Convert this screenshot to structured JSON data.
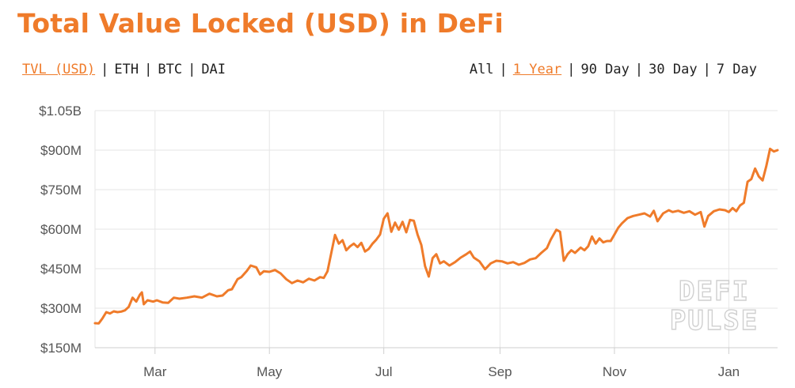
{
  "title": "Total Value Locked (USD) in DeFi",
  "metric_tabs": [
    {
      "label": "TVL (USD)",
      "active": true
    },
    {
      "label": "ETH",
      "active": false
    },
    {
      "label": "BTC",
      "active": false
    },
    {
      "label": "DAI",
      "active": false
    }
  ],
  "range_tabs": [
    {
      "label": "All",
      "active": false
    },
    {
      "label": "1 Year",
      "active": true
    },
    {
      "label": "90 Day",
      "active": false
    },
    {
      "label": "30 Day",
      "active": false
    },
    {
      "label": "7 Day",
      "active": false
    }
  ],
  "watermark": [
    "DEFI",
    "PULSE"
  ],
  "colors": {
    "accent": "#ef7b2a",
    "grid": "#e6e6e6",
    "text": "#555555"
  },
  "chart_data": {
    "type": "line",
    "title": "Total Value Locked (USD) in DeFi",
    "xlabel": "",
    "ylabel": "",
    "grid": true,
    "ylim": [
      150,
      1050
    ],
    "y_ticks": [
      150,
      300,
      450,
      600,
      750,
      900,
      1050
    ],
    "y_tick_labels": [
      "$150M",
      "$300M",
      "$450M",
      "$600M",
      "$750M",
      "$900M",
      "$1.05B"
    ],
    "x_range": [
      "2019-01-28",
      "2020-01-27"
    ],
    "x_ticks": [
      "2019-03-01",
      "2019-05-01",
      "2019-07-01",
      "2019-09-01",
      "2019-11-01",
      "2020-01-01"
    ],
    "x_tick_labels": [
      "Mar",
      "May",
      "Jul",
      "Sep",
      "Nov",
      "Jan"
    ],
    "series": [
      {
        "color": "#ef7b2a",
        "points": [
          [
            "2019-01-28",
            243
          ],
          [
            "2019-01-30",
            242
          ],
          [
            "2019-02-01",
            262
          ],
          [
            "2019-02-03",
            285
          ],
          [
            "2019-02-05",
            280
          ],
          [
            "2019-02-07",
            288
          ],
          [
            "2019-02-09",
            285
          ],
          [
            "2019-02-11",
            287
          ],
          [
            "2019-02-13",
            292
          ],
          [
            "2019-02-15",
            305
          ],
          [
            "2019-02-17",
            340
          ],
          [
            "2019-02-19",
            325
          ],
          [
            "2019-02-21",
            352
          ],
          [
            "2019-02-22",
            360
          ],
          [
            "2019-02-23",
            315
          ],
          [
            "2019-02-25",
            330
          ],
          [
            "2019-02-28",
            325
          ],
          [
            "2019-03-02",
            330
          ],
          [
            "2019-03-05",
            322
          ],
          [
            "2019-03-08",
            320
          ],
          [
            "2019-03-11",
            340
          ],
          [
            "2019-03-14",
            336
          ],
          [
            "2019-03-18",
            340
          ],
          [
            "2019-03-22",
            345
          ],
          [
            "2019-03-26",
            340
          ],
          [
            "2019-03-30",
            355
          ],
          [
            "2019-04-03",
            345
          ],
          [
            "2019-04-06",
            348
          ],
          [
            "2019-04-09",
            368
          ],
          [
            "2019-04-11",
            372
          ],
          [
            "2019-04-14",
            410
          ],
          [
            "2019-04-16",
            418
          ],
          [
            "2019-04-19",
            442
          ],
          [
            "2019-04-21",
            462
          ],
          [
            "2019-04-24",
            455
          ],
          [
            "2019-04-26",
            428
          ],
          [
            "2019-04-28",
            440
          ],
          [
            "2019-05-01",
            438
          ],
          [
            "2019-05-04",
            445
          ],
          [
            "2019-05-07",
            432
          ],
          [
            "2019-05-10",
            410
          ],
          [
            "2019-05-13",
            395
          ],
          [
            "2019-05-16",
            405
          ],
          [
            "2019-05-19",
            398
          ],
          [
            "2019-05-22",
            412
          ],
          [
            "2019-05-25",
            405
          ],
          [
            "2019-05-28",
            418
          ],
          [
            "2019-05-30",
            415
          ],
          [
            "2019-06-01",
            440
          ],
          [
            "2019-06-03",
            510
          ],
          [
            "2019-06-05",
            578
          ],
          [
            "2019-06-07",
            545
          ],
          [
            "2019-06-09",
            558
          ],
          [
            "2019-06-11",
            520
          ],
          [
            "2019-06-13",
            535
          ],
          [
            "2019-06-15",
            545
          ],
          [
            "2019-06-17",
            532
          ],
          [
            "2019-06-19",
            548
          ],
          [
            "2019-06-21",
            515
          ],
          [
            "2019-06-23",
            525
          ],
          [
            "2019-06-25",
            545
          ],
          [
            "2019-06-27",
            560
          ],
          [
            "2019-06-29",
            580
          ],
          [
            "2019-07-01",
            640
          ],
          [
            "2019-07-03",
            660
          ],
          [
            "2019-07-05",
            590
          ],
          [
            "2019-07-07",
            625
          ],
          [
            "2019-07-09",
            598
          ],
          [
            "2019-07-11",
            628
          ],
          [
            "2019-07-13",
            588
          ],
          [
            "2019-07-15",
            635
          ],
          [
            "2019-07-17",
            632
          ],
          [
            "2019-07-19",
            580
          ],
          [
            "2019-07-21",
            540
          ],
          [
            "2019-07-23",
            460
          ],
          [
            "2019-07-25",
            420
          ],
          [
            "2019-07-27",
            490
          ],
          [
            "2019-07-29",
            505
          ],
          [
            "2019-07-31",
            470
          ],
          [
            "2019-08-02",
            478
          ],
          [
            "2019-08-05",
            462
          ],
          [
            "2019-08-08",
            475
          ],
          [
            "2019-08-11",
            492
          ],
          [
            "2019-08-14",
            505
          ],
          [
            "2019-08-16",
            515
          ],
          [
            "2019-08-18",
            492
          ],
          [
            "2019-08-21",
            478
          ],
          [
            "2019-08-24",
            448
          ],
          [
            "2019-08-27",
            470
          ],
          [
            "2019-08-30",
            480
          ],
          [
            "2019-09-02",
            478
          ],
          [
            "2019-09-05",
            470
          ],
          [
            "2019-09-08",
            475
          ],
          [
            "2019-09-11",
            465
          ],
          [
            "2019-09-14",
            472
          ],
          [
            "2019-09-17",
            485
          ],
          [
            "2019-09-20",
            490
          ],
          [
            "2019-09-23",
            510
          ],
          [
            "2019-09-26",
            528
          ],
          [
            "2019-09-28",
            560
          ],
          [
            "2019-10-01",
            598
          ],
          [
            "2019-10-03",
            590
          ],
          [
            "2019-10-05",
            480
          ],
          [
            "2019-10-07",
            505
          ],
          [
            "2019-10-09",
            520
          ],
          [
            "2019-10-11",
            510
          ],
          [
            "2019-10-14",
            530
          ],
          [
            "2019-10-16",
            520
          ],
          [
            "2019-10-18",
            535
          ],
          [
            "2019-10-20",
            572
          ],
          [
            "2019-10-22",
            545
          ],
          [
            "2019-10-24",
            565
          ],
          [
            "2019-10-26",
            550
          ],
          [
            "2019-10-28",
            555
          ],
          [
            "2019-10-30",
            555
          ],
          [
            "2019-11-01",
            580
          ],
          [
            "2019-11-03",
            605
          ],
          [
            "2019-11-05",
            622
          ],
          [
            "2019-11-08",
            642
          ],
          [
            "2019-11-11",
            650
          ],
          [
            "2019-11-14",
            655
          ],
          [
            "2019-11-17",
            660
          ],
          [
            "2019-11-20",
            648
          ],
          [
            "2019-11-22",
            670
          ],
          [
            "2019-11-24",
            630
          ],
          [
            "2019-11-27",
            660
          ],
          [
            "2019-11-30",
            672
          ],
          [
            "2019-12-02",
            665
          ],
          [
            "2019-12-05",
            670
          ],
          [
            "2019-12-08",
            662
          ],
          [
            "2019-12-11",
            668
          ],
          [
            "2019-12-14",
            655
          ],
          [
            "2019-12-17",
            665
          ],
          [
            "2019-12-19",
            610
          ],
          [
            "2019-12-21",
            650
          ],
          [
            "2019-12-24",
            668
          ],
          [
            "2019-12-27",
            675
          ],
          [
            "2019-12-30",
            672
          ],
          [
            "2020-01-01",
            665
          ],
          [
            "2020-01-03",
            680
          ],
          [
            "2020-01-05",
            668
          ],
          [
            "2020-01-07",
            690
          ],
          [
            "2020-01-09",
            700
          ],
          [
            "2020-01-11",
            780
          ],
          [
            "2020-01-13",
            790
          ],
          [
            "2020-01-15",
            830
          ],
          [
            "2020-01-17",
            800
          ],
          [
            "2020-01-19",
            785
          ],
          [
            "2020-01-21",
            840
          ],
          [
            "2020-01-23",
            905
          ],
          [
            "2020-01-25",
            895
          ],
          [
            "2020-01-27",
            900
          ]
        ]
      }
    ]
  }
}
